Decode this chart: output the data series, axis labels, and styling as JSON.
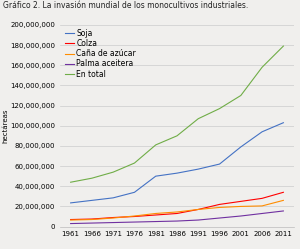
{
  "title": "Gráfico 2. La invasión mundial de los monocultivos industriales.",
  "ylabel": "hectáreas",
  "years": [
    1961,
    1966,
    1971,
    1976,
    1981,
    1986,
    1991,
    1996,
    2001,
    2006,
    2011
  ],
  "series": {
    "Soja": [
      23500000,
      26000000,
      28500000,
      34000000,
      50000000,
      53000000,
      57000000,
      62000000,
      79000000,
      94000000,
      103000000
    ],
    "Colza": [
      7000000,
      7500000,
      9000000,
      10000000,
      11500000,
      13000000,
      17000000,
      22000000,
      25000000,
      28000000,
      34000000
    ],
    "Caña de azúcar": [
      6500000,
      7000000,
      8500000,
      10500000,
      13000000,
      14500000,
      17000000,
      19000000,
      20000000,
      20500000,
      26000000
    ],
    "Palma aceitera": [
      3000000,
      3500000,
      4000000,
      4500000,
      5000000,
      5500000,
      6500000,
      8500000,
      10500000,
      13000000,
      15500000
    ],
    "En total": [
      44000000,
      48000000,
      54000000,
      63000000,
      81000000,
      90000000,
      107000000,
      117000000,
      130000000,
      158000000,
      179000000
    ]
  },
  "colors": {
    "Soja": "#4472c4",
    "Colza": "#ff0000",
    "Caña de azúcar": "#ff8c00",
    "Palma aceitera": "#7030a0",
    "En total": "#70ad47"
  },
  "ylim": [
    0,
    200000000
  ],
  "yticks": [
    0,
    20000000,
    40000000,
    60000000,
    80000000,
    100000000,
    120000000,
    140000000,
    160000000,
    180000000,
    200000000
  ],
  "background_color": "#f0efed",
  "plot_bg": "#f0efed",
  "title_fontsize": 5.5,
  "axis_fontsize": 5,
  "legend_fontsize": 5.5
}
